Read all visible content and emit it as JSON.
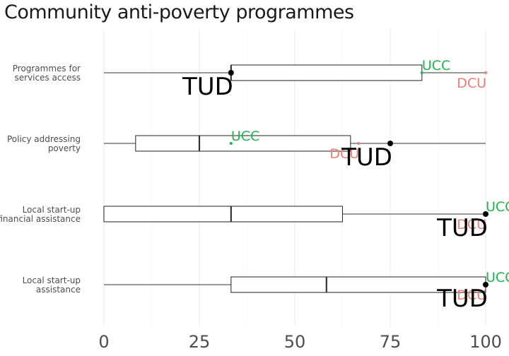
{
  "chart_data": {
    "type": "boxplot",
    "title": "Community anti-poverty programmes",
    "xlabel": "",
    "ylabel": "",
    "xlim": [
      0,
      100
    ],
    "x_ticks": [
      "0",
      "25",
      "50",
      "75",
      "100"
    ],
    "grid": true,
    "legend": "none",
    "categories": [
      {
        "label_lines": [
          "Programmes for",
          "services access"
        ],
        "box": {
          "min": 0,
          "q1": 33.3,
          "median": 33.3,
          "q3": 83.3,
          "max": 100
        },
        "points": [
          {
            "name": "UCC",
            "value": 83.3
          },
          {
            "name": "DCU",
            "value": 100
          },
          {
            "name": "TUD",
            "value": 33.3
          }
        ]
      },
      {
        "label_lines": [
          "Policy addressing",
          "poverty"
        ],
        "box": {
          "min": 0,
          "q1": 8.3,
          "median": 25,
          "q3": 64.6,
          "max": 100
        },
        "points": [
          {
            "name": "UCC",
            "value": 33.3
          },
          {
            "name": "DCU",
            "value": 66.7
          },
          {
            "name": "TUD",
            "value": 75
          }
        ]
      },
      {
        "label_lines": [
          "Local start-up",
          "financial assistance"
        ],
        "box": {
          "min": 0,
          "q1": 0,
          "median": 33.3,
          "q3": 62.5,
          "max": 100
        },
        "points": [
          {
            "name": "UCC",
            "value": 100
          },
          {
            "name": "DCU",
            "value": 100
          },
          {
            "name": "TUD",
            "value": 100
          }
        ]
      },
      {
        "label_lines": [
          "Local start-up",
          "assistance"
        ],
        "box": {
          "min": 0,
          "q1": 33.3,
          "median": 58.3,
          "q3": 100,
          "max": 100
        },
        "points": [
          {
            "name": "UCC",
            "value": 100
          },
          {
            "name": "DCU",
            "value": 100
          },
          {
            "name": "TUD",
            "value": 100
          }
        ]
      }
    ],
    "point_colors": {
      "UCC": "#1db84a",
      "DCU": "#f07b73",
      "TUD": "#000000"
    }
  }
}
